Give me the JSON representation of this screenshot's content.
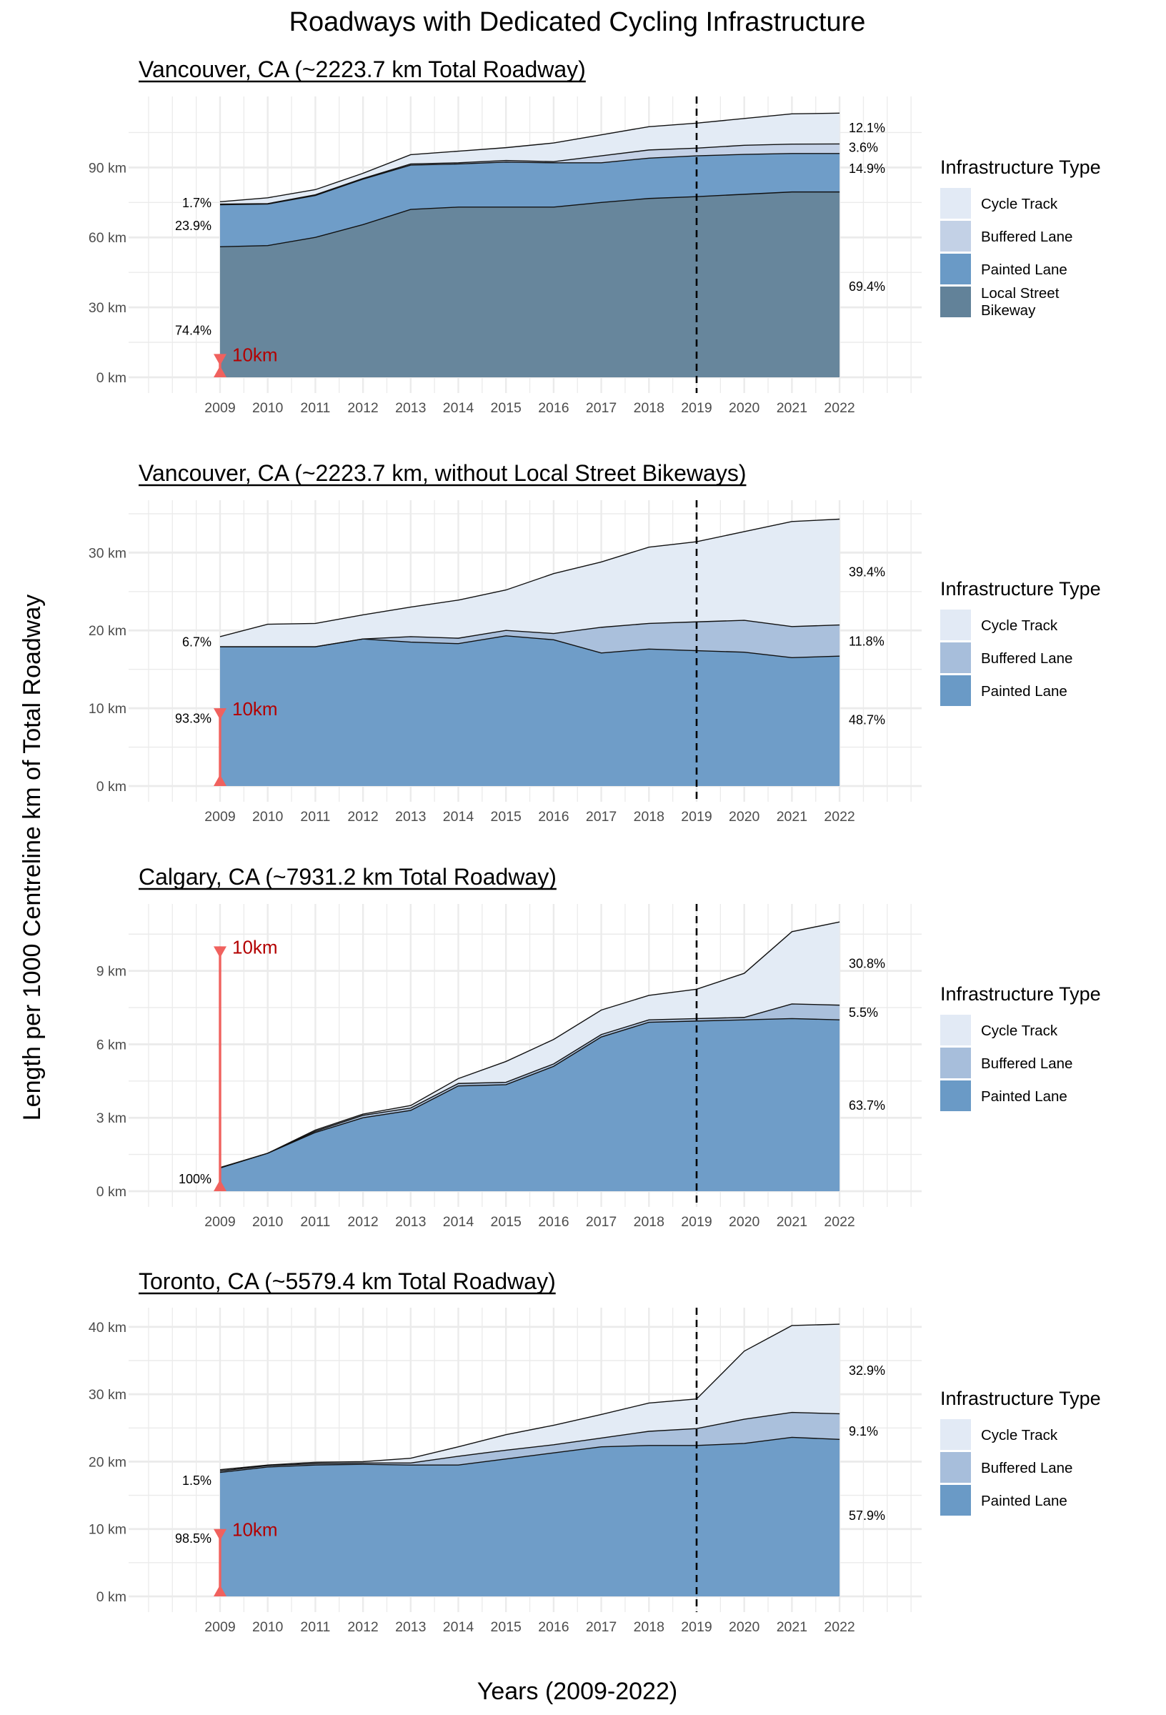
{
  "figure": {
    "title": "Roadways with Dedicated Cycling Infrastructure",
    "ylabel": "Length per 1000 Centreline km of Total Roadway",
    "xlabel": "Years (2009-2022)"
  },
  "colors": {
    "cycle_track": "#e2eaf5",
    "buffered_lane_light": "#c3d1e6",
    "buffered_lane": "#a7bedb",
    "painted_lane": "#6a9ac6",
    "local_street_bikeway": "#628299",
    "reference_line": "#000000",
    "annotation_arrow": "#f0615e",
    "annotation_text": "#b30000",
    "grid": "#ebebeb"
  },
  "legend": {
    "title": "Infrastructure Type"
  },
  "chart_data": [
    {
      "type": "area",
      "stacked": true,
      "title": "Vancouver, CA (~2223.7 km Total Roadway)",
      "xlabel": "Years (2009-2022)",
      "ylabel": "Length per 1000 Centreline km of Total Roadway",
      "x": [
        2009,
        2010,
        2011,
        2012,
        2013,
        2014,
        2015,
        2016,
        2017,
        2018,
        2019,
        2020,
        2021,
        2022
      ],
      "xlim": [
        2008,
        2023
      ],
      "ylim": [
        0,
        118
      ],
      "yticks": [
        0,
        30,
        60,
        90
      ],
      "ytick_labels": [
        "0 km",
        "30 km",
        "60 km",
        "90 km"
      ],
      "grid": true,
      "legend_position": "right",
      "reference_line_x": 2019,
      "series": [
        {
          "name": "Local Street Bikeway",
          "color_key": "local_street_bikeway",
          "values": [
            56.0,
            56.5,
            60.0,
            65.5,
            72.0,
            73.0,
            73.0,
            73.0,
            75.0,
            76.7,
            77.5,
            78.5,
            79.5,
            79.5
          ]
        },
        {
          "name": "Painted Lane",
          "color_key": "painted_lane",
          "values": [
            18.0,
            17.8,
            18.0,
            19.5,
            19.0,
            18.5,
            19.3,
            19.0,
            17.0,
            17.3,
            17.5,
            17.1,
            16.5,
            16.5
          ]
        },
        {
          "name": "Buffered Lane",
          "color_key": "buffered_lane_light",
          "values": [
            0.3,
            0.2,
            0.3,
            0.3,
            0.5,
            0.5,
            0.7,
            0.5,
            3.0,
            3.5,
            3.3,
            3.9,
            4.0,
            4.1
          ]
        },
        {
          "name": "Cycle Track",
          "color_key": "cycle_track",
          "values": [
            1.0,
            2.5,
            2.2,
            2.2,
            4.0,
            5.0,
            5.5,
            8.0,
            9.0,
            10.0,
            10.7,
            11.5,
            13.0,
            13.2
          ]
        }
      ],
      "start_labels": [
        "1.7%",
        "23.9%",
        "74.4%"
      ],
      "start_label_values": [
        74.8,
        65.0,
        20.0
      ],
      "end_labels": [
        "12.1%",
        "3.6%",
        "14.9%",
        "69.4%"
      ],
      "end_label_values": [
        107.0,
        98.5,
        89.5,
        39.0
      ],
      "annotation": {
        "label": "10km",
        "from": 0,
        "to": 10,
        "x": 2009
      }
    },
    {
      "type": "area",
      "stacked": true,
      "title": "Vancouver, CA (~2223.7 km, without Local Street Bikeways)",
      "x": [
        2009,
        2010,
        2011,
        2012,
        2013,
        2014,
        2015,
        2016,
        2017,
        2018,
        2019,
        2020,
        2021,
        2022
      ],
      "xlim": [
        2008,
        2023
      ],
      "ylim": [
        0,
        36
      ],
      "yticks": [
        0,
        10,
        20,
        30
      ],
      "ytick_labels": [
        "0 km",
        "10 km",
        "20 km",
        "30 km"
      ],
      "grid": true,
      "legend_position": "right",
      "reference_line_x": 2019,
      "series": [
        {
          "name": "Painted Lane",
          "color_key": "painted_lane",
          "values": [
            17.9,
            17.9,
            17.9,
            18.9,
            18.5,
            18.3,
            19.3,
            18.8,
            17.1,
            17.6,
            17.4,
            17.2,
            16.5,
            16.7
          ]
        },
        {
          "name": "Buffered Lane",
          "color_key": "buffered_lane",
          "values": [
            0.0,
            0.0,
            0.0,
            0.0,
            0.7,
            0.7,
            0.7,
            0.8,
            3.3,
            3.3,
            3.7,
            4.1,
            4.0,
            4.0
          ]
        },
        {
          "name": "Cycle Track",
          "color_key": "cycle_track",
          "values": [
            1.3,
            2.9,
            3.0,
            3.1,
            3.8,
            4.9,
            5.2,
            7.7,
            8.4,
            9.8,
            10.3,
            11.4,
            13.5,
            13.6
          ]
        }
      ],
      "start_labels": [
        "6.7%",
        "93.3%"
      ],
      "start_label_values": [
        18.5,
        8.7
      ],
      "end_labels": [
        "39.4%",
        "11.8%",
        "48.7%"
      ],
      "end_label_values": [
        27.5,
        18.6,
        8.5
      ],
      "annotation": {
        "label": "10km",
        "from": 0,
        "to": 10,
        "x": 2009
      }
    },
    {
      "type": "area",
      "stacked": true,
      "title": "Calgary, CA (~7931.2 km Total Roadway)",
      "x": [
        2009,
        2010,
        2011,
        2012,
        2013,
        2014,
        2015,
        2016,
        2017,
        2018,
        2019,
        2020,
        2021,
        2022
      ],
      "xlim": [
        2008,
        2023
      ],
      "ylim": [
        0,
        11.5
      ],
      "yticks": [
        0,
        3,
        6,
        9
      ],
      "ytick_labels": [
        "0 km",
        "3 km",
        "6 km",
        "9 km"
      ],
      "grid": true,
      "legend_position": "right",
      "reference_line_x": 2019,
      "series": [
        {
          "name": "Painted Lane",
          "color_key": "painted_lane",
          "values": [
            0.95,
            1.55,
            2.4,
            3.0,
            3.3,
            4.3,
            4.35,
            5.1,
            6.3,
            6.9,
            6.95,
            7.0,
            7.05,
            7.0
          ]
        },
        {
          "name": "Buffered Lane",
          "color_key": "buffered_lane",
          "values": [
            0.0,
            0.0,
            0.05,
            0.1,
            0.1,
            0.1,
            0.1,
            0.1,
            0.1,
            0.1,
            0.1,
            0.1,
            0.6,
            0.6
          ]
        },
        {
          "name": "Cycle Track",
          "color_key": "cycle_track",
          "values": [
            0.02,
            0.0,
            0.05,
            0.05,
            0.1,
            0.2,
            0.85,
            1.0,
            1.0,
            1.0,
            1.2,
            1.8,
            2.95,
            3.4
          ]
        }
      ],
      "start_labels": [
        "100%"
      ],
      "start_label_values": [
        0.5
      ],
      "end_labels": [
        "30.8%",
        "5.5%",
        "63.7%"
      ],
      "end_label_values": [
        9.3,
        7.3,
        3.5
      ],
      "annotation": {
        "label": "10km",
        "from": 0,
        "to": 10,
        "x": 2009
      }
    },
    {
      "type": "area",
      "stacked": true,
      "title": "Toronto, CA (~5579.4 km Total Roadway)",
      "x": [
        2009,
        2010,
        2011,
        2012,
        2013,
        2014,
        2015,
        2016,
        2017,
        2018,
        2019,
        2020,
        2021,
        2022
      ],
      "xlim": [
        2008,
        2023
      ],
      "ylim": [
        0,
        42
      ],
      "yticks": [
        0,
        10,
        20,
        30,
        40
      ],
      "ytick_labels": [
        "0 km",
        "10 km",
        "20 km",
        "30 km",
        "40 km"
      ],
      "grid": true,
      "legend_position": "right",
      "reference_line_x": 2019,
      "series": [
        {
          "name": "Painted Lane",
          "color_key": "painted_lane",
          "values": [
            18.4,
            19.2,
            19.5,
            19.6,
            19.5,
            19.5,
            20.4,
            21.3,
            22.2,
            22.4,
            22.4,
            22.7,
            23.6,
            23.3
          ]
        },
        {
          "name": "Buffered Lane",
          "color_key": "buffered_lane",
          "values": [
            0.2,
            0.2,
            0.2,
            0.2,
            0.3,
            1.3,
            1.3,
            1.2,
            1.3,
            2.1,
            2.5,
            3.6,
            3.7,
            3.8
          ]
        },
        {
          "name": "Cycle Track",
          "color_key": "cycle_track",
          "values": [
            0.2,
            0.1,
            0.2,
            0.2,
            0.7,
            1.4,
            2.3,
            2.9,
            3.5,
            4.2,
            4.4,
            10.1,
            12.9,
            13.3
          ]
        }
      ],
      "start_labels": [
        "1.5%",
        "98.5%"
      ],
      "start_label_values": [
        17.2,
        8.6
      ],
      "end_labels": [
        "32.9%",
        "9.1%",
        "57.9%"
      ],
      "end_label_values": [
        33.5,
        24.5,
        12.0
      ],
      "annotation": {
        "label": "10km",
        "from": 0,
        "to": 10,
        "x": 2009
      }
    }
  ]
}
